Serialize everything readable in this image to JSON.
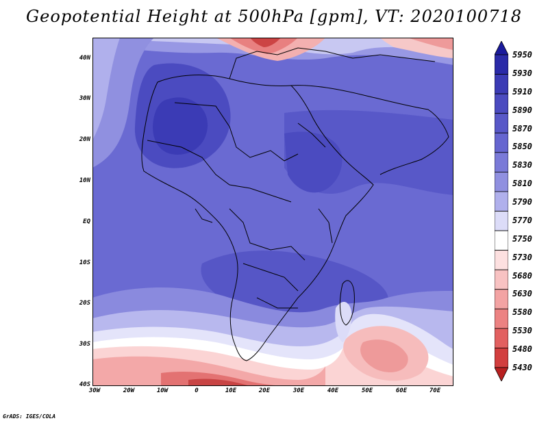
{
  "title": "Geopotential Height at 500hPa [gpm], VT: 2020100718",
  "credit": "GrADS: IGES/COLA",
  "map": {
    "lat_labels": [
      "40N",
      "30N",
      "20N",
      "10N",
      "EQ",
      "10S",
      "20S",
      "30S",
      "40S"
    ],
    "lon_labels": [
      "30W",
      "20W",
      "10W",
      "0",
      "10E",
      "20E",
      "30E",
      "40E",
      "50E",
      "60E",
      "70E"
    ],
    "lat_range": [
      -40,
      45
    ],
    "lon_range": [
      -30,
      77
    ]
  },
  "colorbar": {
    "labels": [
      "5950",
      "5930",
      "5910",
      "5890",
      "5870",
      "5850",
      "5830",
      "5810",
      "5790",
      "5770",
      "5750",
      "5730",
      "5680",
      "5630",
      "5580",
      "5530",
      "5480",
      "5430"
    ],
    "colors": [
      "#1a1a9c",
      "#2a2aa8",
      "#3b3bb5",
      "#4b4bc0",
      "#5858c8",
      "#6666d0",
      "#7a7ad8",
      "#9090e0",
      "#b0b0ec",
      "#dcdcf8",
      "#ffffff",
      "#fde0e0",
      "#f8c2c2",
      "#f3a3a3",
      "#ec8282",
      "#e26060",
      "#d23e3e",
      "#b82020"
    ]
  }
}
